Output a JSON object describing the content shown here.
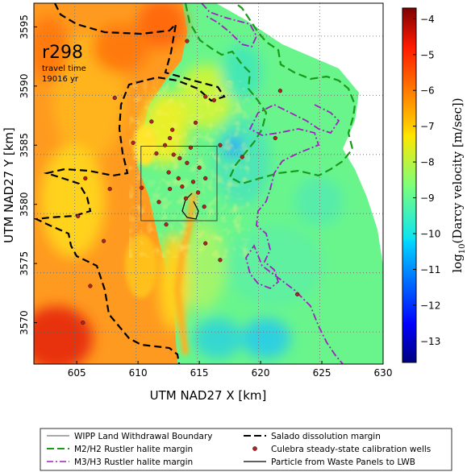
{
  "chart_data": {
    "type": "heatmap",
    "xlabel": "UTM NAD27 X [km]",
    "ylabel": "UTM NAD27 Y [km]",
    "xlim": [
      601.5,
      630
    ],
    "ylim": [
      3566.5,
      3597
    ],
    "x_ticks": [
      "605",
      "610",
      "615",
      "620",
      "625",
      "630"
    ],
    "y_ticks": [
      "3570",
      "3575",
      "3580",
      "3585",
      "3590",
      "3595"
    ],
    "grid": true,
    "run_id": "r298",
    "travel_time_label": "travel time",
    "travel_time_value": "19016 yr",
    "colorbar": {
      "label": "log10(Darcy velocity [m/sec])",
      "label_prefix": "log",
      "label_sub": "10",
      "label_rest": "(Darcy velocity [m/sec])",
      "range": [
        -13.6,
        -3.7
      ],
      "ticks": [
        "-4",
        "-5",
        "-6",
        "-7",
        "-8",
        "-9",
        "-10",
        "-11",
        "-12",
        "-13"
      ],
      "colormap": "jet"
    },
    "wipp_boundary": {
      "x": [
        610.7,
        616.9
      ],
      "y": [
        3578.8,
        3585.1
      ]
    },
    "wells": [
      {
        "x": 608.1,
        "y": 3589.0
      },
      {
        "x": 611.1,
        "y": 3587.0
      },
      {
        "x": 614.7,
        "y": 3586.9
      },
      {
        "x": 612.8,
        "y": 3586.3
      },
      {
        "x": 612.6,
        "y": 3585.6
      },
      {
        "x": 609.6,
        "y": 3585.2
      },
      {
        "x": 614.3,
        "y": 3584.8
      },
      {
        "x": 616.7,
        "y": 3585.0
      },
      {
        "x": 611.5,
        "y": 3584.3
      },
      {
        "x": 612.9,
        "y": 3584.2
      },
      {
        "x": 613.4,
        "y": 3583.9
      },
      {
        "x": 614.0,
        "y": 3583.5
      },
      {
        "x": 615.0,
        "y": 3583.1
      },
      {
        "x": 612.5,
        "y": 3582.7
      },
      {
        "x": 613.3,
        "y": 3582.2
      },
      {
        "x": 615.5,
        "y": 3582.2
      },
      {
        "x": 614.5,
        "y": 3581.9
      },
      {
        "x": 612.6,
        "y": 3581.3
      },
      {
        "x": 613.6,
        "y": 3581.5
      },
      {
        "x": 614.9,
        "y": 3581.0
      },
      {
        "x": 613.9,
        "y": 3580.5
      },
      {
        "x": 610.3,
        "y": 3581.4
      },
      {
        "x": 611.7,
        "y": 3580.2
      },
      {
        "x": 615.4,
        "y": 3579.8
      },
      {
        "x": 605.7,
        "y": 3582.2
      },
      {
        "x": 605.1,
        "y": 3579.0
      },
      {
        "x": 607.7,
        "y": 3581.3
      },
      {
        "x": 607.2,
        "y": 3576.9
      },
      {
        "x": 606.1,
        "y": 3573.1
      },
      {
        "x": 612.3,
        "y": 3578.3
      },
      {
        "x": 615.5,
        "y": 3576.7
      },
      {
        "x": 616.7,
        "y": 3575.3
      },
      {
        "x": 618.5,
        "y": 3584.0
      },
      {
        "x": 621.6,
        "y": 3589.6
      },
      {
        "x": 621.2,
        "y": 3585.6
      },
      {
        "x": 623.0,
        "y": 3572.4
      },
      {
        "x": 605.5,
        "y": 3570.0
      },
      {
        "x": 614.0,
        "y": 3593.8
      },
      {
        "x": 615.5,
        "y": 3589.1
      },
      {
        "x": 616.2,
        "y": 3588.8
      },
      {
        "x": 612.2,
        "y": 3585.0
      }
    ],
    "legend": {
      "placement": "bottom",
      "items": [
        {
          "label": "WIPP Land Withdrawal Boundary",
          "style": "thin-solid",
          "color": "#555555"
        },
        {
          "label": "Salado dissolution margin",
          "style": "dashed",
          "color": "#000000"
        },
        {
          "label": "M2/H2 Rustler halite margin",
          "style": "dashed",
          "color": "#1a9a1a"
        },
        {
          "label": "Culebra steady-state calibration wells",
          "style": "marker",
          "color": "#b22222"
        },
        {
          "label": "M3/H3 Rustler halite margin",
          "style": "dashdot",
          "color": "#a020c0"
        },
        {
          "label": "Particle from Waste Panels to LWB",
          "style": "solid",
          "color": "#000000"
        }
      ]
    }
  }
}
